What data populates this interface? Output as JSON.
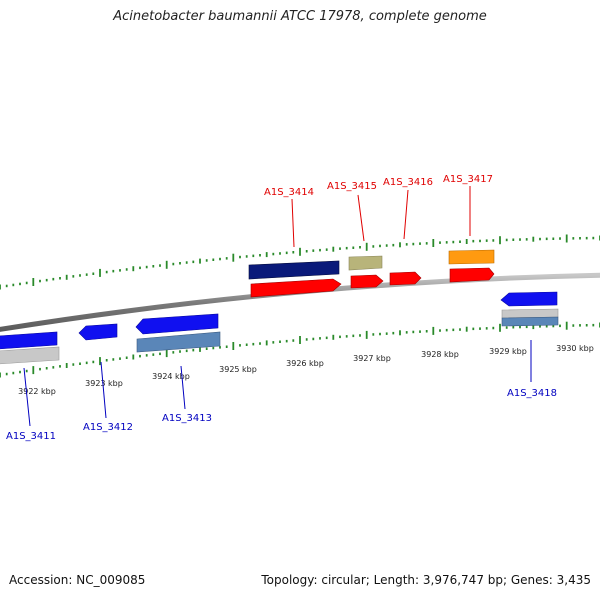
{
  "title": "Acinetobacter baumannii ATCC 17978, complete genome",
  "footer": {
    "accession": "Accession: NC_009085",
    "summary": "Topology: circular; Length: 3,976,747 bp; Genes: 3,435"
  },
  "ticks": [
    "3922 kbp",
    "3923 kbp",
    "3924 kbp",
    "3925 kbp",
    "3926 kbp",
    "3927 kbp",
    "3928 kbp",
    "3929 kbp",
    "3930 kbp"
  ],
  "genes": {
    "A1S_3411": "A1S_3411",
    "A1S_3412": "A1S_3412",
    "A1S_3413": "A1S_3413",
    "A1S_3414": "A1S_3414",
    "A1S_3415": "A1S_3415",
    "A1S_3416": "A1S_3416",
    "A1S_3417": "A1S_3417",
    "A1S_3418": "A1S_3418"
  },
  "colors": {
    "plus_label": "#e00000",
    "minus_label": "#0000c0",
    "backbone": "#808080",
    "tick": "#2a8a2a",
    "red": "#ff0000",
    "blue": "#1010f0",
    "navy": "#0a1a7a",
    "khaki": "#b8b47a",
    "orange": "#ff9a10",
    "steel": "#5a86b8",
    "silver": "#c8c8c8"
  }
}
